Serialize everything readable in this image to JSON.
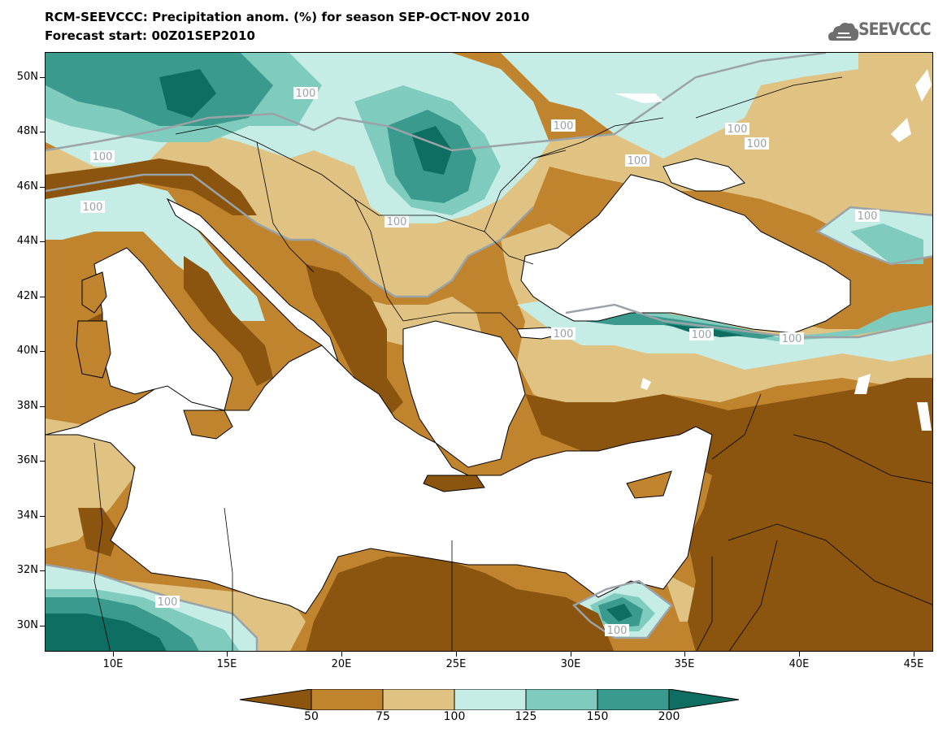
{
  "title_line1": "RCM-SEEVCCC: Precipitation anom. (%) for season SEP-OCT-NOV 2010",
  "title_line2": "Forecast start: 00Z01SEP2010",
  "logo_text": "SEEVCCC",
  "lat_labels": [
    "50N",
    "48N",
    "46N",
    "44N",
    "42N",
    "40N",
    "38N",
    "36N",
    "34N",
    "32N",
    "30N"
  ],
  "lon_labels": [
    "10E",
    "15E",
    "20E",
    "25E",
    "30E",
    "35E",
    "40E",
    "45E"
  ],
  "colorbar": {
    "bins": [
      {
        "color": "#8b5510",
        "label": "<50"
      },
      {
        "color": "#c0842e",
        "label": "50-75"
      },
      {
        "color": "#e0c382",
        "label": "75-100"
      },
      {
        "color": "#c6ece6",
        "label": "100-125"
      },
      {
        "color": "#7fcbbd",
        "label": "125-150"
      },
      {
        "color": "#3a9a8e",
        "label": "150-200"
      },
      {
        "color": "#0e6e62",
        "label": ">200"
      }
    ],
    "tick_labels": [
      "50",
      "75",
      "100",
      "125",
      "150",
      "200"
    ]
  },
  "contour_labels": [
    "100",
    "100",
    "100",
    "100",
    "100",
    "100",
    "100",
    "100",
    "100",
    "100",
    "100",
    "100",
    "100",
    "100"
  ],
  "colors": {
    "sea": "#ffffff",
    "coast": "#000000",
    "contour": "#9aa3a8"
  }
}
